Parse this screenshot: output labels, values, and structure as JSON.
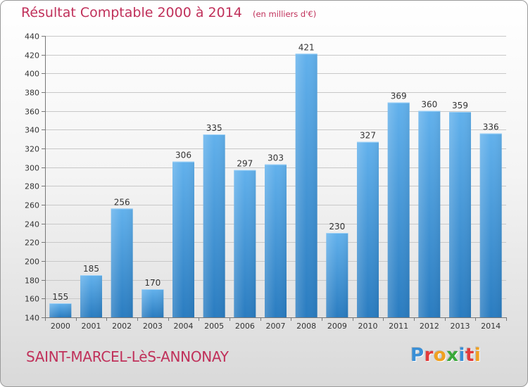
{
  "title": "Résultat Comptable 2000 à 2014",
  "unit_note": "(en milliers d'€)",
  "town": "SAINT-MARCEL-LèS-ANNONAY",
  "logo": {
    "text": "Proxiti",
    "letters": [
      {
        "ch": "P",
        "color": "#3a8fd6"
      },
      {
        "ch": "r",
        "color": "#e23b3b"
      },
      {
        "ch": "o",
        "color": "#f0a020"
      },
      {
        "ch": "x",
        "color": "#3aa83a"
      },
      {
        "ch": "i",
        "color": "#3a8fd6"
      },
      {
        "ch": "t",
        "color": "#e23b3b"
      },
      {
        "ch": "i",
        "color": "#f0a020"
      }
    ]
  },
  "colors": {
    "bar_light": "#62b1ec",
    "bar_dark": "#2a7cc0",
    "title": "#c0305a",
    "grid": "#c8c8c8"
  },
  "chart_data": {
    "type": "bar",
    "categories": [
      "2000",
      "2001",
      "2002",
      "2003",
      "2004",
      "2005",
      "2006",
      "2007",
      "2008",
      "2009",
      "2010",
      "2011",
      "2012",
      "2013",
      "2014"
    ],
    "values": [
      155,
      185,
      256,
      170,
      306,
      335,
      297,
      303,
      421,
      230,
      327,
      369,
      360,
      359,
      336
    ],
    "ylim": [
      140,
      440
    ],
    "yticks": [
      140,
      160,
      180,
      200,
      220,
      240,
      260,
      280,
      300,
      320,
      340,
      360,
      380,
      400,
      420,
      440
    ],
    "grid": true,
    "show_data_labels": true
  }
}
